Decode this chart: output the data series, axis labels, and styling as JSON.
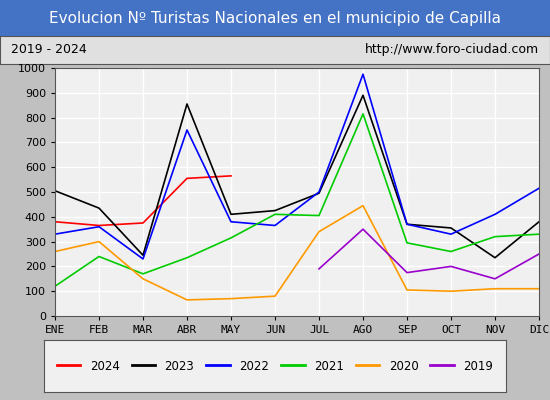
{
  "title": "Evolucion Nº Turistas Nacionales en el municipio de Capilla",
  "subtitle_left": "2019 - 2024",
  "subtitle_right": "http://www.foro-ciudad.com",
  "months": [
    "ENE",
    "FEB",
    "MAR",
    "ABR",
    "MAY",
    "JUN",
    "JUL",
    "AGO",
    "SEP",
    "OCT",
    "NOV",
    "DIC"
  ],
  "ylim": [
    0,
    1000
  ],
  "yticks": [
    0,
    100,
    200,
    300,
    400,
    500,
    600,
    700,
    800,
    900,
    1000
  ],
  "series": {
    "2024": {
      "color": "#ff0000",
      "data": [
        380,
        365,
        375,
        555,
        565,
        null,
        null,
        null,
        null,
        null,
        null,
        null
      ]
    },
    "2023": {
      "color": "#000000",
      "data": [
        505,
        435,
        245,
        855,
        410,
        425,
        495,
        890,
        370,
        355,
        235,
        380
      ]
    },
    "2022": {
      "color": "#0000ff",
      "data": [
        330,
        360,
        230,
        750,
        380,
        365,
        500,
        975,
        370,
        330,
        410,
        515
      ]
    },
    "2021": {
      "color": "#00cc00",
      "data": [
        120,
        240,
        170,
        235,
        315,
        410,
        405,
        815,
        295,
        260,
        320,
        330
      ]
    },
    "2020": {
      "color": "#ff9900",
      "data": [
        260,
        300,
        150,
        65,
        70,
        80,
        340,
        445,
        105,
        100,
        110,
        110
      ]
    },
    "2019": {
      "color": "#9900cc",
      "data": [
        null,
        null,
        null,
        null,
        null,
        null,
        190,
        350,
        175,
        200,
        150,
        250
      ]
    }
  },
  "legend_order": [
    "2024",
    "2023",
    "2022",
    "2021",
    "2020",
    "2019"
  ],
  "title_bg_color": "#4472c4",
  "title_text_color": "#ffffff",
  "subtitle_bg_color": "#e0e0e0",
  "plot_bg_color": "#f0f0f0",
  "grid_color": "#ffffff",
  "border_color": "#555555"
}
